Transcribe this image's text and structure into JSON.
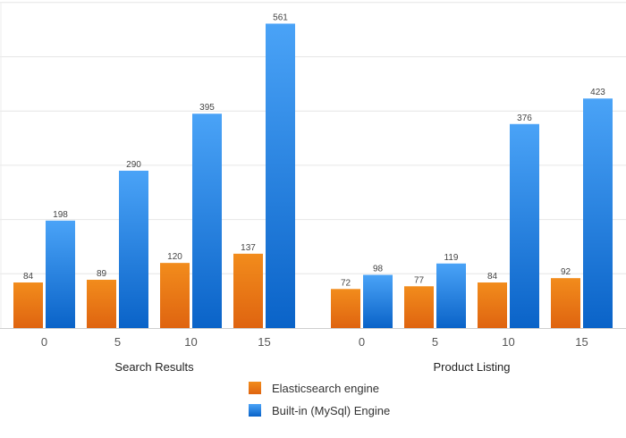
{
  "chart_data": {
    "type": "bar",
    "groups": [
      {
        "name": "Search Results",
        "categories": [
          "0",
          "5",
          "10",
          "15"
        ],
        "series": [
          {
            "name": "Elasticsearch engine",
            "values": [
              84,
              89,
              120,
              137
            ]
          },
          {
            "name": "Built-in (MySql) Engine",
            "values": [
              198,
              290,
              395,
              561
            ]
          }
        ]
      },
      {
        "name": "Product Listing",
        "categories": [
          "0",
          "5",
          "10",
          "15"
        ],
        "series": [
          {
            "name": "Elasticsearch engine",
            "values": [
              72,
              77,
              84,
              92
            ]
          },
          {
            "name": "Built-in (MySql) Engine",
            "values": [
              98,
              119,
              376,
              423
            ]
          }
        ]
      }
    ],
    "ylim": [
      0,
      600
    ],
    "grid": true,
    "data_labels": true,
    "legend_position": "bottom",
    "legend": [
      {
        "label": "Elasticsearch engine",
        "color_top": "#f28c1c",
        "color_bottom": "#df6410"
      },
      {
        "label": "Built-in (MySql) Engine",
        "color_top": "#4aa3f7",
        "color_bottom": "#0a63c8"
      }
    ]
  }
}
